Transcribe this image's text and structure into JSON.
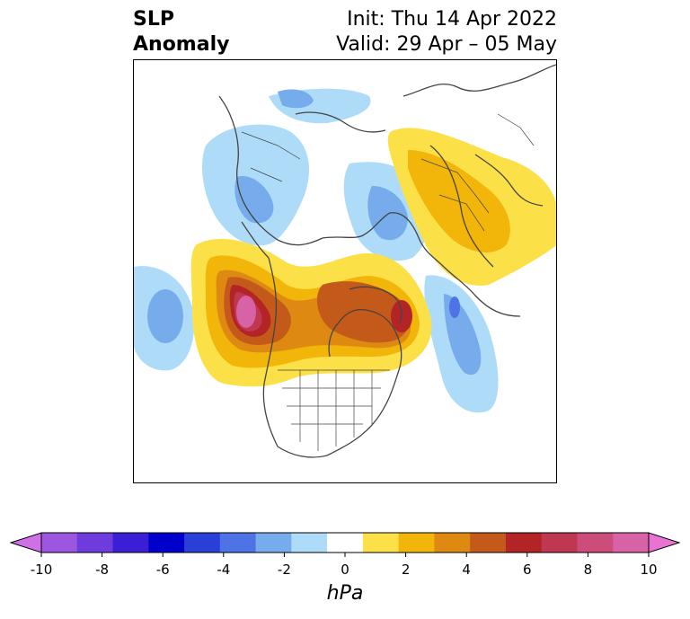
{
  "title": {
    "line1": "SLP",
    "line2": "Anomaly",
    "init": "Init: Thu 14 Apr 2022",
    "valid": "Valid: 29 Apr – 05 May"
  },
  "colorbar": {
    "unit": "hPa",
    "ticks": [
      "-10",
      "-8",
      "-6",
      "-4",
      "-2",
      "0",
      "2",
      "4",
      "6",
      "8",
      "10"
    ],
    "bin_colors": [
      "#d070e6",
      "#9c56e0",
      "#6e3bdc",
      "#3a1fd6",
      "#0000cc",
      "#2a3ed8",
      "#4d73e4",
      "#76acec",
      "#aedcf8",
      "#ffffff",
      "#fce047",
      "#f2b50a",
      "#de8a12",
      "#c45a1a",
      "#b22425",
      "#c03752",
      "#cc4c7a",
      "#d862a6",
      "#e873d2"
    ]
  },
  "map": {
    "description_colors": {
      "neg_light": "#aedcf8",
      "neg_mid": "#76acec",
      "neg_dark": "#4d73e4",
      "pos_light": "#fce047",
      "pos_mid": "#f2b50a",
      "pos_orange": "#de8a12",
      "pos_dark": "#c45a1a",
      "pos_red": "#b22425",
      "pos_rose": "#c03752",
      "pos_pink": "#d862a6",
      "coast": "#444444"
    }
  }
}
